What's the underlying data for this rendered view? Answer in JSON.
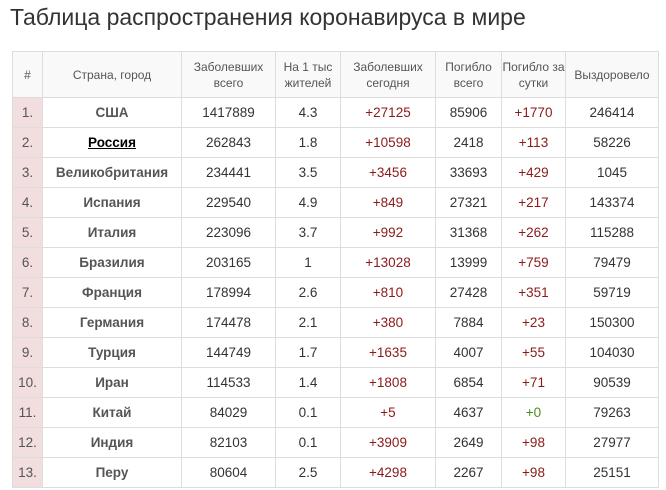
{
  "page": {
    "title": "Таблица распространения коронавируса в мире"
  },
  "table": {
    "headers": [
      "#",
      "Страна, город",
      "Заболевших всего",
      "На 1 тыс жителей",
      "Заболевших сегодня",
      "Погибло всего",
      "Погибло за сутки",
      "Выздоровело"
    ],
    "rows": [
      {
        "num": "1.",
        "country": "США",
        "total": "1417889",
        "per_1k": "4.3",
        "today": "+27125",
        "deaths": "85906",
        "deaths_day": "+1770",
        "recovered": "246414"
      },
      {
        "num": "2.",
        "country": "Россия",
        "total": "262843",
        "per_1k": "1.8",
        "today": "+10598",
        "deaths": "2418",
        "deaths_day": "+113",
        "recovered": "58226"
      },
      {
        "num": "3.",
        "country": "Великобритания",
        "total": "234441",
        "per_1k": "3.5",
        "today": "+3456",
        "deaths": "33693",
        "deaths_day": "+429",
        "recovered": "1045"
      },
      {
        "num": "4.",
        "country": "Испания",
        "total": "229540",
        "per_1k": "4.9",
        "today": "+849",
        "deaths": "27321",
        "deaths_day": "+217",
        "recovered": "143374"
      },
      {
        "num": "5.",
        "country": "Италия",
        "total": "223096",
        "per_1k": "3.7",
        "today": "+992",
        "deaths": "31368",
        "deaths_day": "+262",
        "recovered": "115288"
      },
      {
        "num": "6.",
        "country": "Бразилия",
        "total": "203165",
        "per_1k": "1",
        "today": "+13028",
        "deaths": "13999",
        "deaths_day": "+759",
        "recovered": "79479"
      },
      {
        "num": "7.",
        "country": "Франция",
        "total": "178994",
        "per_1k": "2.6",
        "today": "+810",
        "deaths": "27428",
        "deaths_day": "+351",
        "recovered": "59719"
      },
      {
        "num": "8.",
        "country": "Германия",
        "total": "174478",
        "per_1k": "2.1",
        "today": "+380",
        "deaths": "7884",
        "deaths_day": "+23",
        "recovered": "150300"
      },
      {
        "num": "9.",
        "country": "Турция",
        "total": "144749",
        "per_1k": "1.7",
        "today": "+1635",
        "deaths": "4007",
        "deaths_day": "+55",
        "recovered": "104030"
      },
      {
        "num": "10.",
        "country": "Иран",
        "total": "114533",
        "per_1k": "1.4",
        "today": "+1808",
        "deaths": "6854",
        "deaths_day": "+71",
        "recovered": "90539"
      },
      {
        "num": "11.",
        "country": "Китай",
        "total": "84029",
        "per_1k": "0.1",
        "today": "+5",
        "deaths": "4637",
        "deaths_day": "+0",
        "recovered": "79263"
      },
      {
        "num": "12.",
        "country": "Индия",
        "total": "82103",
        "per_1k": "0.1",
        "today": "+3909",
        "deaths": "2649",
        "deaths_day": "+98",
        "recovered": "27977"
      },
      {
        "num": "13.",
        "country": "Перу",
        "total": "80604",
        "per_1k": "2.5",
        "today": "+4298",
        "deaths": "2267",
        "deaths_day": "+98",
        "recovered": "25151"
      }
    ]
  },
  "colors": {
    "number_cell_bg": "#f2dede",
    "header_bg": "#f9f9f9",
    "increase_red": "#8b1a1a",
    "zero_green": "#4c8c1a",
    "border": "#dddddd"
  }
}
